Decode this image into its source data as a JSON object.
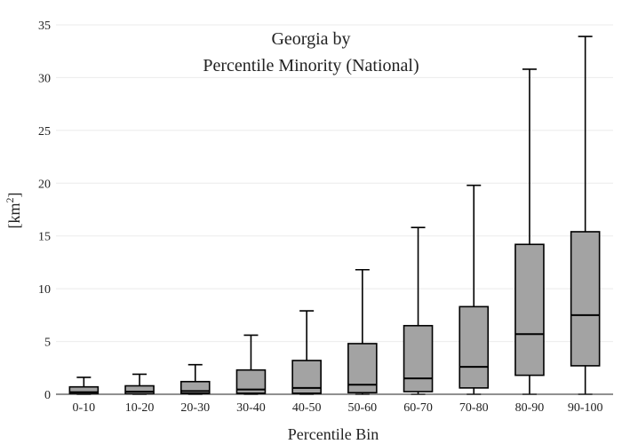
{
  "chart_data": {
    "type": "box",
    "title_line1": "Georgia  by",
    "title_line2": "Percentile Minority (National)",
    "xlabel": "Percentile Bin",
    "ylabel_base": "[km",
    "ylabel_sup": "2",
    "ylabel_close": "]",
    "ylim": [
      0,
      35
    ],
    "yticks": [
      "0",
      "5",
      "10",
      "15",
      "20",
      "25",
      "30",
      "35"
    ],
    "grid": true,
    "categories": [
      "0-10",
      "10-20",
      "20-30",
      "30-40",
      "40-50",
      "50-60",
      "60-70",
      "70-80",
      "80-90",
      "90-100"
    ],
    "boxes": [
      {
        "min": 0.0,
        "q1": 0.05,
        "median": 0.2,
        "q3": 0.7,
        "max": 1.6
      },
      {
        "min": 0.0,
        "q1": 0.05,
        "median": 0.25,
        "q3": 0.8,
        "max": 1.9
      },
      {
        "min": 0.0,
        "q1": 0.1,
        "median": 0.3,
        "q3": 1.2,
        "max": 2.8
      },
      {
        "min": 0.0,
        "q1": 0.1,
        "median": 0.45,
        "q3": 2.3,
        "max": 5.6
      },
      {
        "min": 0.0,
        "q1": 0.1,
        "median": 0.6,
        "q3": 3.2,
        "max": 7.9
      },
      {
        "min": 0.0,
        "q1": 0.15,
        "median": 0.9,
        "q3": 4.8,
        "max": 11.8
      },
      {
        "min": 0.0,
        "q1": 0.25,
        "median": 1.5,
        "q3": 6.5,
        "max": 15.8
      },
      {
        "min": 0.0,
        "q1": 0.6,
        "median": 2.6,
        "q3": 8.3,
        "max": 19.8
      },
      {
        "min": 0.0,
        "q1": 1.8,
        "median": 5.7,
        "q3": 14.2,
        "max": 30.8
      },
      {
        "min": 0.0,
        "q1": 2.7,
        "median": 7.5,
        "q3": 15.4,
        "max": 33.9
      }
    ],
    "box_color": "#a3a3a3",
    "line_color": "#000000",
    "grid_color": "#ebebeb"
  }
}
